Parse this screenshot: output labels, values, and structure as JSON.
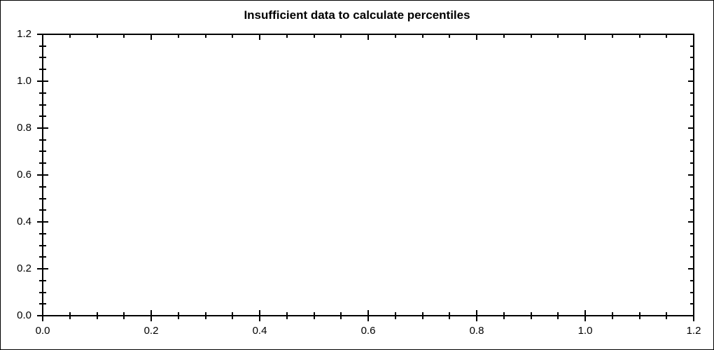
{
  "chart_data": {
    "type": "scatter",
    "title": "Insufficient data to calculate percentiles",
    "series": [],
    "x_axis": {
      "label": "",
      "min": 0.0,
      "max": 1.2,
      "major_tick_interval": 0.2,
      "minor_tick_interval": 0.05,
      "tick_labels": [
        "0.0",
        "0.2",
        "0.4",
        "0.6",
        "0.8",
        "1.0",
        "1.2"
      ]
    },
    "y_axis": {
      "label": "",
      "min": 0.0,
      "max": 1.2,
      "major_tick_interval": 0.2,
      "minor_tick_interval": 0.05,
      "tick_labels": [
        "0.0",
        "0.2",
        "0.4",
        "0.6",
        "0.8",
        "1.0",
        "1.2"
      ]
    },
    "grid": false,
    "legend": false
  },
  "colors": {
    "background": "#ffffff",
    "axis": "#000000",
    "text": "#000000"
  }
}
